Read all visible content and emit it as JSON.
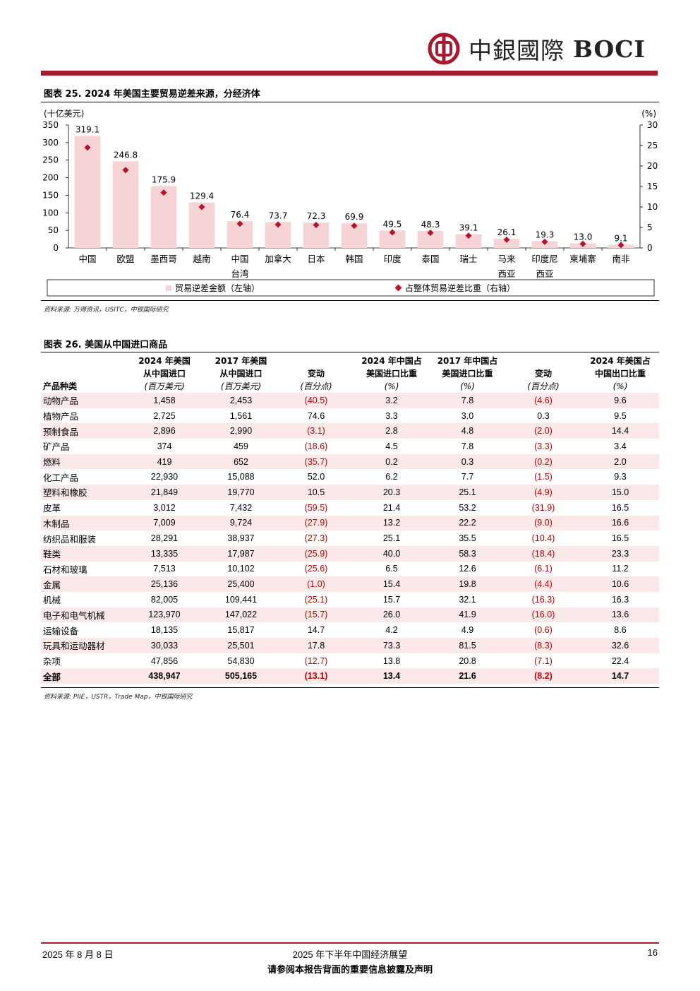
{
  "header": {
    "logo_cn": "中銀國際",
    "logo_en": "BOCI"
  },
  "figure25": {
    "title": "图表 25. 2024 年美国主要贸易逆差来源，分经济体",
    "left_unit": "(十亿美元)",
    "right_unit": "(%)",
    "source": "资料来源: 万得资讯，USITC，中银国际研究",
    "legend_bar": "贸易逆差金额（左轴）",
    "legend_dot": "占整体贸易逆差比重（右轴）"
  },
  "chart_data": {
    "type": "bar",
    "categories": [
      [
        "中国"
      ],
      [
        "欧盟"
      ],
      [
        "墨西哥"
      ],
      [
        "越南"
      ],
      [
        "中国",
        "台湾"
      ],
      [
        "加拿大"
      ],
      [
        "日本"
      ],
      [
        "韩国"
      ],
      [
        "印度"
      ],
      [
        "泰国"
      ],
      [
        "瑞士"
      ],
      [
        "马来",
        "西亚"
      ],
      [
        "印度尼",
        "西亚"
      ],
      [
        "柬埔寨"
      ],
      [
        "南非"
      ]
    ],
    "series": [
      {
        "name": "贸易逆差金额（左轴）",
        "values": [
          319.1,
          246.8,
          175.9,
          129.4,
          76.4,
          73.7,
          72.3,
          69.9,
          49.5,
          48.3,
          39.1,
          26.1,
          19.3,
          13.0,
          9.1
        ],
        "axis": "left"
      },
      {
        "name": "占整体贸易逆差比重（右轴）",
        "values": [
          24.5,
          19.0,
          13.5,
          10.0,
          5.9,
          5.7,
          5.6,
          5.4,
          3.8,
          3.7,
          3.0,
          2.0,
          1.5,
          1.0,
          0.7
        ],
        "axis": "right"
      }
    ],
    "value_labels": [
      "319.1",
      "246.8",
      "175.9",
      "129.4",
      "76.4",
      "73.7",
      "72.3",
      "69.9",
      "49.5",
      "48.3",
      "39.1",
      "26.1",
      "19.3",
      "13.0",
      "9.1"
    ],
    "ylim_left": [
      0,
      350
    ],
    "yticks_left": [
      "0",
      "50",
      "100",
      "150",
      "200",
      "250",
      "300",
      "350"
    ],
    "ylim_right": [
      0,
      30
    ],
    "yticks_right": [
      "0",
      "5",
      "10",
      "15",
      "20",
      "25",
      "30"
    ],
    "colors": {
      "bar": "#f6d4d5",
      "dot": "#b5152b"
    },
    "legend": "bottom"
  },
  "table26": {
    "title": "图表 26. 美国从中国进口商品",
    "headers": [
      [
        "",
        "2024 年美国",
        "2017 年美国",
        "",
        "2024 年中国占",
        "2017 年中国占",
        "",
        "2024 年美国占"
      ],
      [
        "",
        "从中国进口",
        "从中国进口",
        "变动",
        "美国进口比重",
        "美国进口比重",
        "变动",
        "中国出口比重"
      ],
      [
        "产品种类",
        "(百万美元)",
        "(百万美元)",
        "(百分点)",
        "(%)",
        "(%)",
        "(百分点)",
        "(%)"
      ]
    ],
    "rows": [
      [
        "动物产品",
        "1,458",
        "2,453",
        "(40.5)",
        "3.2",
        "7.8",
        "(4.6)",
        "9.6"
      ],
      [
        "植物产品",
        "2,725",
        "1,561",
        "74.6",
        "3.3",
        "3.0",
        "0.3",
        "9.5"
      ],
      [
        "预制食品",
        "2,896",
        "2,990",
        "(3.1)",
        "2.8",
        "4.8",
        "(2.0)",
        "14.4"
      ],
      [
        "矿产品",
        "374",
        "459",
        "(18.6)",
        "4.5",
        "7.8",
        "(3.3)",
        "3.4"
      ],
      [
        "燃料",
        "419",
        "652",
        "(35.7)",
        "0.2",
        "0.3",
        "(0.2)",
        "2.0"
      ],
      [
        "化工产品",
        "22,930",
        "15,088",
        "52.0",
        "6.2",
        "7.7",
        "(1.5)",
        "9.3"
      ],
      [
        "塑料和橡胶",
        "21,849",
        "19,770",
        "10.5",
        "20.3",
        "25.1",
        "(4.9)",
        "15.0"
      ],
      [
        "皮革",
        "3,012",
        "7,432",
        "(59.5)",
        "21.4",
        "53.2",
        "(31.9)",
        "16.5"
      ],
      [
        "木制品",
        "7,009",
        "9,724",
        "(27.9)",
        "13.2",
        "22.2",
        "(9.0)",
        "16.6"
      ],
      [
        "纺织品和服装",
        "28,291",
        "38,937",
        "(27.3)",
        "25.1",
        "35.5",
        "(10.4)",
        "16.5"
      ],
      [
        "鞋类",
        "13,335",
        "17,987",
        "(25.9)",
        "40.0",
        "58.3",
        "(18.4)",
        "23.3"
      ],
      [
        "石材和玻璃",
        "7,513",
        "10,102",
        "(25.6)",
        "6.5",
        "12.6",
        "(6.1)",
        "11.2"
      ],
      [
        "金属",
        "25,136",
        "25,400",
        "(1.0)",
        "15.4",
        "19.8",
        "(4.4)",
        "10.6"
      ],
      [
        "机械",
        "82,005",
        "109,441",
        "(25.1)",
        "15.7",
        "32.1",
        "(16.3)",
        "16.3"
      ],
      [
        "电子和电气机械",
        "123,970",
        "147,022",
        "(15.7)",
        "26.0",
        "41.9",
        "(16.0)",
        "13.6"
      ],
      [
        "运输设备",
        "18,135",
        "15,817",
        "14.7",
        "4.2",
        "4.9",
        "(0.6)",
        "8.6"
      ],
      [
        "玩具和运动器材",
        "30,033",
        "25,501",
        "17.8",
        "73.3",
        "81.5",
        "(8.3)",
        "32.6"
      ],
      [
        "杂项",
        "47,856",
        "54,830",
        "(12.7)",
        "13.8",
        "20.8",
        "(7.1)",
        "22.4"
      ]
    ],
    "total": [
      "全部",
      "438,947",
      "505,165",
      "(13.1)",
      "13.4",
      "21.6",
      "(8.2)",
      "14.7"
    ],
    "source": "资料来源: PIIE，USTR，Trade Map，中银国际研究"
  },
  "footer": {
    "date": "2025 年 8 月 8 日",
    "report_title": "2025 年下半年中国经济展望",
    "page": "16",
    "disclaimer": "请参阅本报告背面的重要信息披露及声明"
  }
}
